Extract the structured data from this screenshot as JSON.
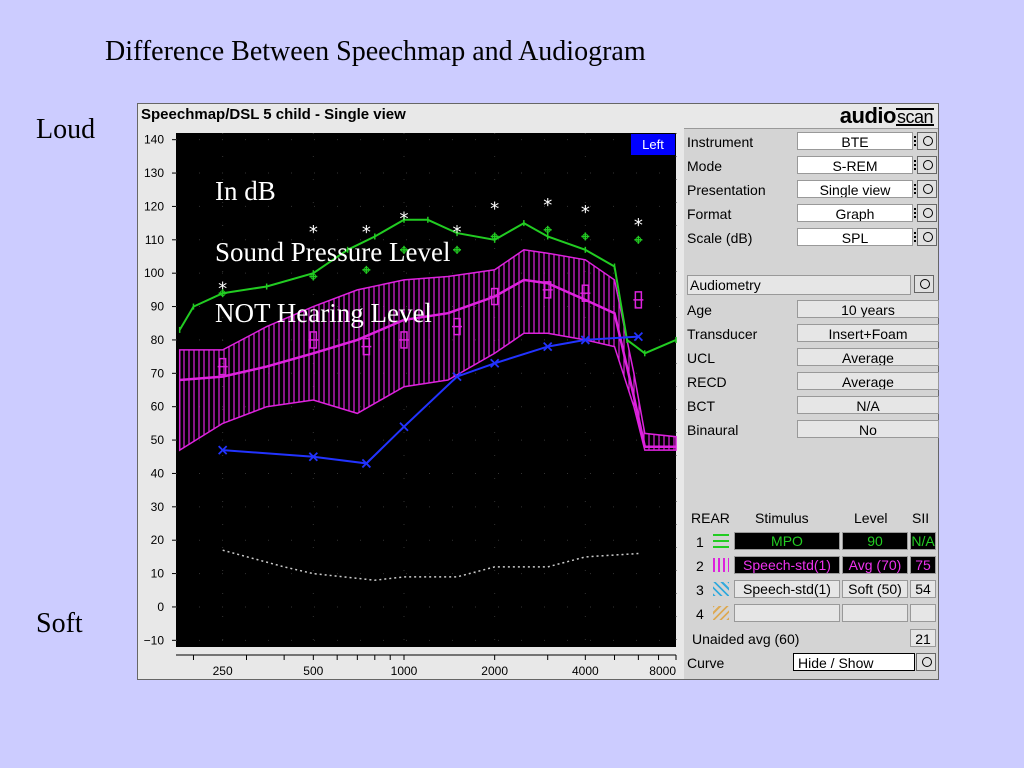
{
  "slide": {
    "title": "Difference Between Speechmap and Audiogram",
    "loud_label": "Loud",
    "soft_label": "Soft"
  },
  "window": {
    "title": "Speechmap/DSL 5 child - Single view",
    "brand_bold": "audio",
    "brand_light": "scan",
    "ear_button": "Left"
  },
  "overlay": {
    "line1": "In dB",
    "line2": "Sound Pressure Level",
    "line3": "NOT Hearing Level"
  },
  "settings": [
    {
      "label": "Instrument",
      "value": "BTE"
    },
    {
      "label": "Mode",
      "value": "S-REM"
    },
    {
      "label": "Presentation",
      "value": "Single view"
    },
    {
      "label": "Format",
      "value": "Graph"
    },
    {
      "label": "Scale (dB)",
      "value": "SPL"
    }
  ],
  "audiometry_label": "Audiometry",
  "audiometry": [
    {
      "label": "Age",
      "value": "10 years"
    },
    {
      "label": "Transducer",
      "value": "Insert+Foam"
    },
    {
      "label": "UCL",
      "value": "Average"
    },
    {
      "label": "RECD",
      "value": "Average"
    },
    {
      "label": "BCT",
      "value": "N/A"
    },
    {
      "label": "Binaural",
      "value": "No"
    }
  ],
  "rear_table": {
    "headers": {
      "rear": "REAR",
      "stimulus": "Stimulus",
      "level": "Level",
      "sii": "SII"
    },
    "rows": [
      {
        "num": "1",
        "stimulus": "MPO",
        "level": "90",
        "sii": "N/A",
        "color": "#22cc22"
      },
      {
        "num": "2",
        "stimulus": "Speech-std(1)",
        "level": "Avg (70)",
        "sii": "75",
        "color": "#cc22cc"
      },
      {
        "num": "3",
        "stimulus": "Speech-std(1)",
        "level": "Soft (50)",
        "sii": "54",
        "color": "#33aadd"
      },
      {
        "num": "4",
        "stimulus": "",
        "level": "",
        "sii": "",
        "color": "#ddaa55"
      }
    ],
    "unaided_label": "Unaided avg (60)",
    "unaided_value": "21",
    "curve_label": "Curve",
    "curve_value": "Hide / Show"
  },
  "chart_data": {
    "type": "line",
    "xscale": "log",
    "xlim": [
      175,
      8000
    ],
    "ylim": [
      -12,
      142
    ],
    "x_ticks": [
      250,
      500,
      1000,
      2000,
      4000,
      8000
    ],
    "x_tick_labels": [
      "250",
      "500",
      "1000",
      "2000",
      "4000",
      "8000"
    ],
    "y_ticks": [
      -10,
      0,
      10,
      20,
      30,
      40,
      50,
      60,
      70,
      80,
      90,
      100,
      110,
      120,
      130,
      140
    ],
    "y_tick_labels": [
      "−10",
      "0",
      "10",
      "20",
      "30",
      "40",
      "50",
      "60",
      "70",
      "80",
      "90",
      "100",
      "110",
      "120",
      "130",
      "140"
    ],
    "colors": {
      "mpo": "#22cc22",
      "speech": "#dd22dd",
      "audiogram": "#2233ff",
      "threshold": "#cccccc",
      "ucl": "#ffffff"
    },
    "series": [
      {
        "kind": "mpo",
        "x": [
          180,
          200,
          250,
          350,
          500,
          650,
          800,
          1000,
          1200,
          1500,
          2000,
          2500,
          3000,
          4000,
          5000,
          5500,
          6300,
          8000
        ],
        "y": [
          83,
          90,
          94,
          96,
          100,
          107,
          111,
          116,
          116,
          112,
          110,
          115,
          111,
          107,
          102,
          80,
          76,
          80
        ]
      },
      {
        "kind": "speech-upper",
        "x": [
          180,
          250,
          350,
          500,
          700,
          1000,
          1400,
          2000,
          2500,
          3000,
          4000,
          5000,
          5800,
          6300,
          8000
        ],
        "y": [
          77,
          77,
          84,
          90,
          95,
          98,
          99,
          101,
          107,
          106,
          104,
          98,
          70,
          52,
          51
        ]
      },
      {
        "kind": "speech-lower",
        "x": [
          180,
          250,
          350,
          500,
          700,
          1000,
          1400,
          2000,
          2500,
          3000,
          4000,
          5000,
          5800,
          6300,
          8000
        ],
        "y": [
          47,
          55,
          60,
          62,
          58,
          66,
          68,
          76,
          82,
          82,
          80,
          78,
          60,
          47,
          47
        ]
      },
      {
        "kind": "speech-ltass",
        "x": [
          180,
          250,
          350,
          500,
          700,
          1000,
          1400,
          2000,
          2500,
          3000,
          4000,
          5000,
          5800,
          6300,
          8000
        ],
        "y": [
          68,
          69,
          72,
          76,
          80,
          86,
          88,
          93,
          98,
          97,
          92,
          88,
          63,
          48,
          48
        ]
      },
      {
        "kind": "audiogram",
        "x": [
          250,
          500,
          750,
          1000,
          1500,
          2000,
          3000,
          4000,
          6000
        ],
        "y": [
          47,
          45,
          43,
          54,
          69,
          73,
          78,
          80,
          81
        ]
      },
      {
        "kind": "threshold",
        "x": [
          250,
          400,
          500,
          800,
          1000,
          1500,
          2000,
          3000,
          4000,
          6000
        ],
        "y": [
          17,
          12,
          10,
          8,
          9,
          9,
          12,
          12,
          15,
          16
        ]
      }
    ],
    "ucl_points": {
      "x": [
        250,
        500,
        750,
        1000,
        1500,
        2000,
        3000,
        4000,
        6000
      ],
      "y": [
        96,
        113,
        113,
        117,
        113,
        120,
        121,
        119,
        115
      ]
    },
    "target_mpo_points": {
      "x": [
        250,
        500,
        750,
        1000,
        1500,
        2000,
        3000,
        4000,
        6000
      ],
      "y": [
        94,
        99,
        101,
        107,
        107,
        111,
        113,
        111,
        110
      ]
    },
    "target_speech_points": {
      "x": [
        250,
        500,
        750,
        1000,
        1500,
        2000,
        3000,
        4000,
        6000
      ],
      "y": [
        72,
        80,
        78,
        80,
        84,
        93,
        95,
        94,
        92
      ]
    }
  }
}
